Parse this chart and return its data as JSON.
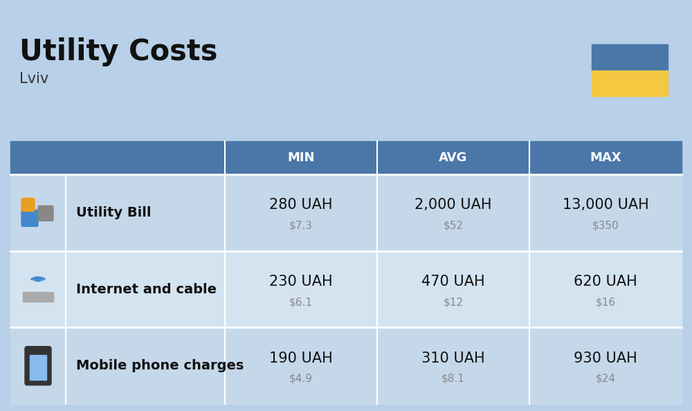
{
  "title": "Utility Costs",
  "subtitle": "Lviv",
  "background_color": "#b8d0e8",
  "header_color": "#4a77a8",
  "header_text_color": "#ffffff",
  "row_color": "#c5d8ea",
  "row_color_alt": "#d4e3f0",
  "table_border_color": "#ffffff",
  "columns": [
    "MIN",
    "AVG",
    "MAX"
  ],
  "rows": [
    {
      "label": "Utility Bill",
      "min_uah": "280 UAH",
      "min_usd": "$7.3",
      "avg_uah": "2,000 UAH",
      "avg_usd": "$52",
      "max_uah": "13,000 UAH",
      "max_usd": "$350"
    },
    {
      "label": "Internet and cable",
      "min_uah": "230 UAH",
      "min_usd": "$6.1",
      "avg_uah": "470 UAH",
      "avg_usd": "$12",
      "max_uah": "620 UAH",
      "max_usd": "$16"
    },
    {
      "label": "Mobile phone charges",
      "min_uah": "190 UAH",
      "min_usd": "$4.9",
      "avg_uah": "310 UAH",
      "avg_usd": "$8.1",
      "max_uah": "930 UAH",
      "max_usd": "$24"
    }
  ],
  "ukraine_flag_blue": "#4a77a8",
  "ukraine_flag_yellow": "#f5c842",
  "uah_fontsize": 15,
  "usd_fontsize": 11,
  "label_fontsize": 14,
  "header_fontsize": 13,
  "title_fontsize": 30,
  "subtitle_fontsize": 15,
  "usd_color": "#888888",
  "label_color": "#111111",
  "title_color": "#111111",
  "subtitle_color": "#333333"
}
